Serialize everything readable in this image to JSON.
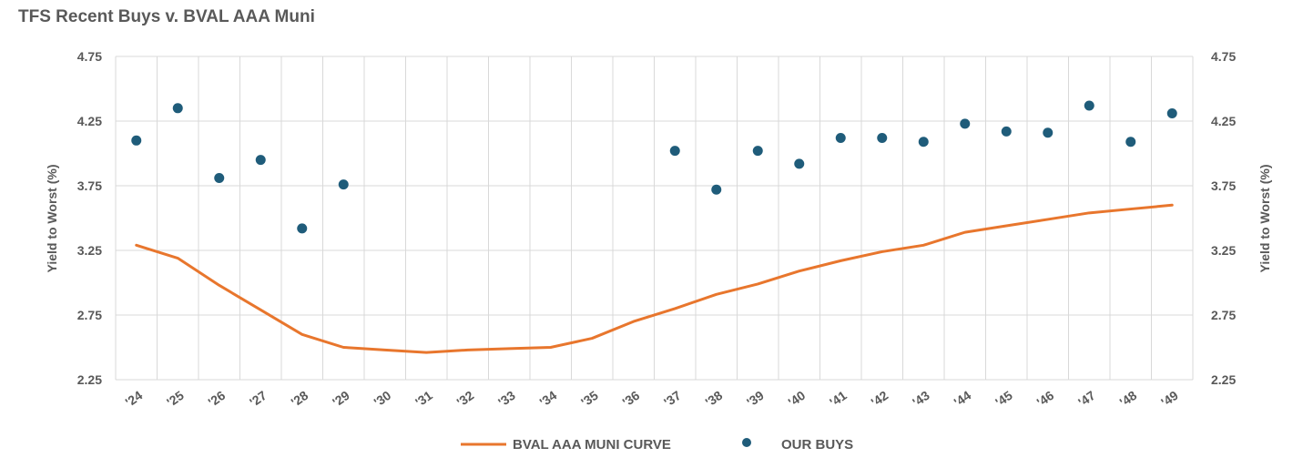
{
  "chart_data": {
    "type": "line",
    "title": "TFS Recent Buys v. BVAL AAA Muni",
    "ylabel_left": "Yield to Worst (%)",
    "ylabel_right": "Yield to Worst (%)",
    "ylim": [
      2.25,
      4.75
    ],
    "yticks": [
      "2.25",
      "2.75",
      "3.25",
      "3.75",
      "4.25",
      "4.75"
    ],
    "categories": [
      "'24",
      "'25",
      "'26",
      "'27",
      "'28",
      "'29",
      "'30",
      "'31",
      "'32",
      "'33",
      "'34",
      "'35",
      "'36",
      "'37",
      "'38",
      "'39",
      "'40",
      "'41",
      "'42",
      "'43",
      "'44",
      "'45",
      "'46",
      "'47",
      "'48",
      "'49"
    ],
    "grid": true,
    "legend_position": "bottom",
    "series": [
      {
        "name": "BVAL AAA MUNI CURVE",
        "kind": "line",
        "color": "#E8762D",
        "values": [
          3.29,
          3.19,
          2.98,
          2.79,
          2.6,
          2.5,
          2.48,
          2.46,
          2.48,
          2.49,
          2.5,
          2.57,
          2.7,
          2.8,
          2.91,
          2.99,
          3.09,
          3.17,
          3.24,
          3.29,
          3.39,
          3.44,
          3.49,
          3.54,
          3.57,
          3.6
        ]
      },
      {
        "name": "OUR BUYS",
        "kind": "scatter",
        "color": "#1F5C7A",
        "points": [
          {
            "x": "'24",
            "y": 4.1
          },
          {
            "x": "'25",
            "y": 4.35
          },
          {
            "x": "'26",
            "y": 3.81
          },
          {
            "x": "'27",
            "y": 3.95
          },
          {
            "x": "'28",
            "y": 3.42
          },
          {
            "x": "'29",
            "y": 3.76
          },
          {
            "x": "'37",
            "y": 4.02
          },
          {
            "x": "'38",
            "y": 3.72
          },
          {
            "x": "'39",
            "y": 4.02
          },
          {
            "x": "'40",
            "y": 3.92
          },
          {
            "x": "'41",
            "y": 4.12
          },
          {
            "x": "'42",
            "y": 4.12
          },
          {
            "x": "'43",
            "y": 4.09
          },
          {
            "x": "'44",
            "y": 4.23
          },
          {
            "x": "'45",
            "y": 4.17
          },
          {
            "x": "'46",
            "y": 4.16
          },
          {
            "x": "'47",
            "y": 4.37
          },
          {
            "x": "'48",
            "y": 4.09
          },
          {
            "x": "'49",
            "y": 4.31
          }
        ]
      }
    ]
  }
}
